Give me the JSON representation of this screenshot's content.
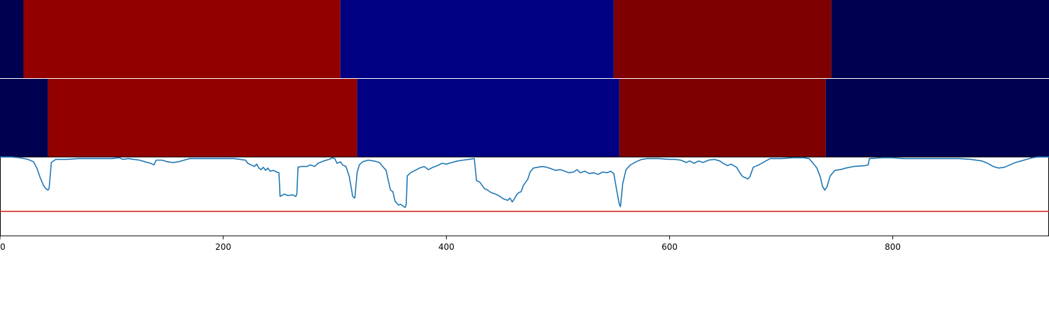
{
  "chart_data": [
    {
      "type": "heatmap",
      "panel": "segmentation-top",
      "xlim": [
        0,
        940
      ],
      "segments": [
        {
          "start": 0,
          "end": 21,
          "color": "#000050"
        },
        {
          "start": 21,
          "end": 305,
          "color": "#920000"
        },
        {
          "start": 305,
          "end": 550,
          "color": "#000082"
        },
        {
          "start": 550,
          "end": 745,
          "color": "#7f0000"
        },
        {
          "start": 745,
          "end": 940,
          "color": "#000050"
        }
      ]
    },
    {
      "type": "heatmap",
      "panel": "segmentation-bottom",
      "xlim": [
        0,
        940
      ],
      "segments": [
        {
          "start": 0,
          "end": 43,
          "color": "#000050"
        },
        {
          "start": 43,
          "end": 320,
          "color": "#920000"
        },
        {
          "start": 320,
          "end": 555,
          "color": "#000082"
        },
        {
          "start": 555,
          "end": 740,
          "color": "#7f0000"
        },
        {
          "start": 740,
          "end": 940,
          "color": "#000050"
        }
      ]
    },
    {
      "type": "line",
      "panel": "signal",
      "xlim": [
        0,
        940
      ],
      "ylim": [
        0,
        1
      ],
      "line_color": "#1f77b4",
      "threshold": {
        "y": 0.31,
        "color": "#d62728"
      },
      "xticks": [
        0,
        200,
        400,
        600,
        800
      ],
      "xtick_labels": [
        "0",
        "200",
        "400",
        "600",
        "800"
      ],
      "points": [
        [
          0,
          1.0
        ],
        [
          10,
          1.0
        ],
        [
          18,
          0.99
        ],
        [
          25,
          0.97
        ],
        [
          30,
          0.94
        ],
        [
          33,
          0.86
        ],
        [
          36,
          0.74
        ],
        [
          39,
          0.64
        ],
        [
          41,
          0.6
        ],
        [
          43,
          0.58
        ],
        [
          44,
          0.6
        ],
        [
          46,
          0.93
        ],
        [
          50,
          0.97
        ],
        [
          60,
          0.97
        ],
        [
          70,
          0.98
        ],
        [
          80,
          0.98
        ],
        [
          90,
          0.98
        ],
        [
          100,
          0.98
        ],
        [
          107,
          0.99
        ],
        [
          110,
          0.97
        ],
        [
          115,
          0.98
        ],
        [
          120,
          0.97
        ],
        [
          125,
          0.96
        ],
        [
          130,
          0.94
        ],
        [
          135,
          0.92
        ],
        [
          138,
          0.9
        ],
        [
          140,
          0.96
        ],
        [
          145,
          0.96
        ],
        [
          150,
          0.94
        ],
        [
          155,
          0.93
        ],
        [
          160,
          0.94
        ],
        [
          165,
          0.96
        ],
        [
          170,
          0.98
        ],
        [
          180,
          0.98
        ],
        [
          190,
          0.98
        ],
        [
          200,
          0.98
        ],
        [
          210,
          0.98
        ],
        [
          215,
          0.97
        ],
        [
          220,
          0.96
        ],
        [
          222,
          0.92
        ],
        [
          225,
          0.9
        ],
        [
          228,
          0.88
        ],
        [
          230,
          0.91
        ],
        [
          232,
          0.86
        ],
        [
          234,
          0.84
        ],
        [
          236,
          0.87
        ],
        [
          238,
          0.83
        ],
        [
          240,
          0.86
        ],
        [
          242,
          0.82
        ],
        [
          245,
          0.83
        ],
        [
          248,
          0.81
        ],
        [
          250,
          0.8
        ],
        [
          251,
          0.5
        ],
        [
          255,
          0.53
        ],
        [
          258,
          0.51
        ],
        [
          262,
          0.52
        ],
        [
          265,
          0.5
        ],
        [
          266,
          0.53
        ],
        [
          267,
          0.87
        ],
        [
          270,
          0.88
        ],
        [
          275,
          0.88
        ],
        [
          278,
          0.9
        ],
        [
          282,
          0.88
        ],
        [
          285,
          0.92
        ],
        [
          290,
          0.95
        ],
        [
          295,
          0.97
        ],
        [
          298,
          0.99
        ],
        [
          300,
          0.98
        ],
        [
          302,
          0.92
        ],
        [
          305,
          0.94
        ],
        [
          307,
          0.9
        ],
        [
          310,
          0.88
        ],
        [
          313,
          0.75
        ],
        [
          316,
          0.5
        ],
        [
          318,
          0.48
        ],
        [
          320,
          0.8
        ],
        [
          322,
          0.9
        ],
        [
          325,
          0.94
        ],
        [
          330,
          0.96
        ],
        [
          335,
          0.95
        ],
        [
          340,
          0.93
        ],
        [
          343,
          0.88
        ],
        [
          346,
          0.83
        ],
        [
          348,
          0.7
        ],
        [
          350,
          0.58
        ],
        [
          352,
          0.56
        ],
        [
          354,
          0.44
        ],
        [
          357,
          0.39
        ],
        [
          359,
          0.4
        ],
        [
          361,
          0.38
        ],
        [
          363,
          0.36
        ],
        [
          364,
          0.4
        ],
        [
          365,
          0.76
        ],
        [
          368,
          0.8
        ],
        [
          372,
          0.83
        ],
        [
          376,
          0.86
        ],
        [
          380,
          0.88
        ],
        [
          384,
          0.84
        ],
        [
          388,
          0.87
        ],
        [
          392,
          0.89
        ],
        [
          396,
          0.92
        ],
        [
          400,
          0.91
        ],
        [
          405,
          0.93
        ],
        [
          410,
          0.95
        ],
        [
          415,
          0.96
        ],
        [
          420,
          0.97
        ],
        [
          425,
          0.98
        ],
        [
          427,
          0.7
        ],
        [
          430,
          0.68
        ],
        [
          434,
          0.6
        ],
        [
          437,
          0.58
        ],
        [
          440,
          0.55
        ],
        [
          444,
          0.53
        ],
        [
          448,
          0.5
        ],
        [
          451,
          0.47
        ],
        [
          453,
          0.46
        ],
        [
          455,
          0.45
        ],
        [
          457,
          0.48
        ],
        [
          459,
          0.43
        ],
        [
          461,
          0.47
        ],
        [
          463,
          0.52
        ],
        [
          465,
          0.55
        ],
        [
          467,
          0.56
        ],
        [
          469,
          0.64
        ],
        [
          471,
          0.68
        ],
        [
          473,
          0.72
        ],
        [
          475,
          0.81
        ],
        [
          478,
          0.86
        ],
        [
          482,
          0.87
        ],
        [
          486,
          0.88
        ],
        [
          490,
          0.87
        ],
        [
          494,
          0.85
        ],
        [
          498,
          0.83
        ],
        [
          502,
          0.84
        ],
        [
          506,
          0.82
        ],
        [
          510,
          0.8
        ],
        [
          514,
          0.81
        ],
        [
          517,
          0.84
        ],
        [
          520,
          0.8
        ],
        [
          524,
          0.82
        ],
        [
          528,
          0.79
        ],
        [
          532,
          0.8
        ],
        [
          536,
          0.78
        ],
        [
          540,
          0.81
        ],
        [
          544,
          0.8
        ],
        [
          547,
          0.82
        ],
        [
          550,
          0.79
        ],
        [
          553,
          0.55
        ],
        [
          555,
          0.4
        ],
        [
          556,
          0.37
        ],
        [
          558,
          0.66
        ],
        [
          561,
          0.84
        ],
        [
          565,
          0.9
        ],
        [
          570,
          0.94
        ],
        [
          575,
          0.97
        ],
        [
          580,
          0.98
        ],
        [
          590,
          0.98
        ],
        [
          600,
          0.97
        ],
        [
          605,
          0.97
        ],
        [
          610,
          0.96
        ],
        [
          615,
          0.93
        ],
        [
          618,
          0.95
        ],
        [
          622,
          0.92
        ],
        [
          626,
          0.95
        ],
        [
          630,
          0.93
        ],
        [
          635,
          0.96
        ],
        [
          640,
          0.97
        ],
        [
          645,
          0.95
        ],
        [
          648,
          0.92
        ],
        [
          652,
          0.89
        ],
        [
          655,
          0.91
        ],
        [
          660,
          0.87
        ],
        [
          663,
          0.8
        ],
        [
          665,
          0.76
        ],
        [
          667,
          0.74
        ],
        [
          668,
          0.74
        ],
        [
          670,
          0.72
        ],
        [
          672,
          0.75
        ],
        [
          675,
          0.87
        ],
        [
          680,
          0.9
        ],
        [
          685,
          0.94
        ],
        [
          690,
          0.98
        ],
        [
          700,
          0.98
        ],
        [
          710,
          0.99
        ],
        [
          720,
          0.99
        ],
        [
          725,
          0.98
        ],
        [
          728,
          0.93
        ],
        [
          732,
          0.86
        ],
        [
          735,
          0.75
        ],
        [
          737,
          0.63
        ],
        [
          739,
          0.58
        ],
        [
          741,
          0.62
        ],
        [
          744,
          0.76
        ],
        [
          748,
          0.83
        ],
        [
          753,
          0.84
        ],
        [
          758,
          0.86
        ],
        [
          765,
          0.88
        ],
        [
          775,
          0.89
        ],
        [
          778,
          0.9
        ],
        [
          779,
          0.98
        ],
        [
          790,
          0.99
        ],
        [
          800,
          0.99
        ],
        [
          810,
          0.98
        ],
        [
          820,
          0.98
        ],
        [
          840,
          0.98
        ],
        [
          860,
          0.98
        ],
        [
          870,
          0.97
        ],
        [
          880,
          0.95
        ],
        [
          885,
          0.92
        ],
        [
          890,
          0.88
        ],
        [
          895,
          0.86
        ],
        [
          900,
          0.87
        ],
        [
          905,
          0.9
        ],
        [
          910,
          0.93
        ],
        [
          915,
          0.95
        ],
        [
          920,
          0.97
        ],
        [
          925,
          0.99
        ],
        [
          930,
          1.0
        ],
        [
          940,
          1.0
        ]
      ]
    }
  ]
}
